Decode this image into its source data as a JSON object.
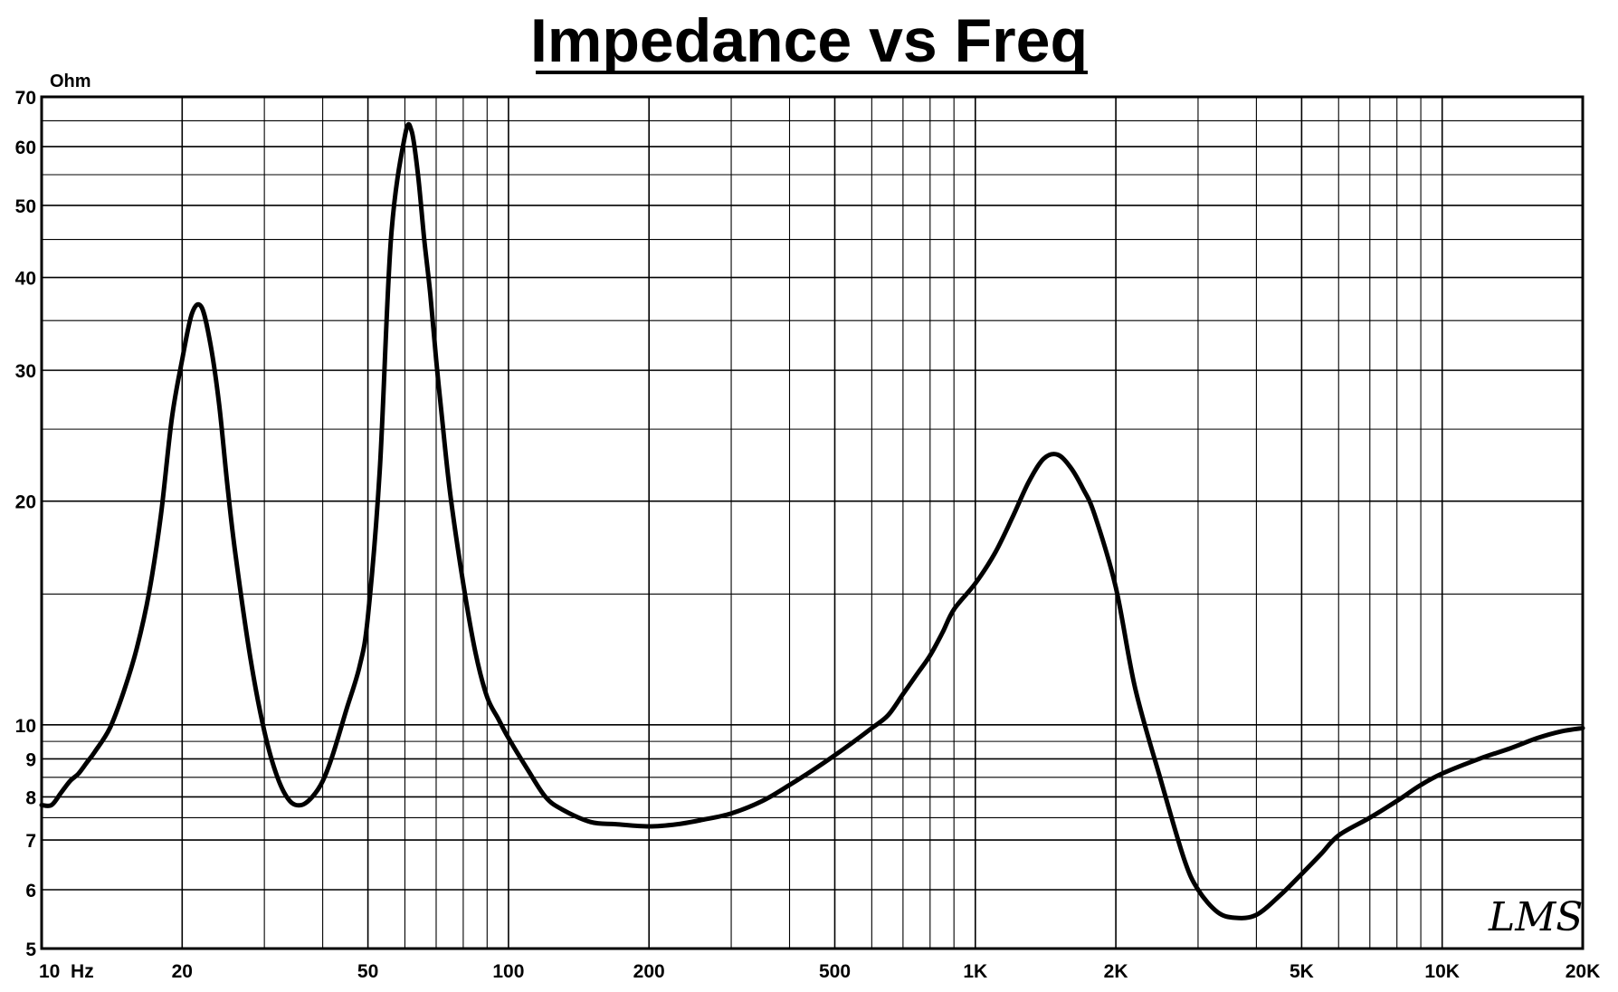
{
  "chart_data": {
    "type": "line",
    "title": "Impedance vs Freq",
    "ylabel": "Ohm",
    "xlabel": "",
    "x_scale": "log",
    "y_scale": "log",
    "xlim": [
      10,
      20000
    ],
    "ylim": [
      5,
      70
    ],
    "grid": true,
    "x_tick_labels": [
      {
        "value": 10,
        "label": "10  Hz"
      },
      {
        "value": 20,
        "label": "20"
      },
      {
        "value": 50,
        "label": "50"
      },
      {
        "value": 100,
        "label": "100"
      },
      {
        "value": 200,
        "label": "200"
      },
      {
        "value": 500,
        "label": "500"
      },
      {
        "value": 1000,
        "label": "1K"
      },
      {
        "value": 2000,
        "label": "2K"
      },
      {
        "value": 5000,
        "label": "5K"
      },
      {
        "value": 10000,
        "label": "10K"
      },
      {
        "value": 20000,
        "label": "20K"
      }
    ],
    "y_tick_labels": [
      {
        "value": 5,
        "label": "5"
      },
      {
        "value": 6,
        "label": "6"
      },
      {
        "value": 7,
        "label": "7"
      },
      {
        "value": 8,
        "label": "8"
      },
      {
        "value": 9,
        "label": "9"
      },
      {
        "value": 10,
        "label": "10"
      },
      {
        "value": 20,
        "label": "20"
      },
      {
        "value": 30,
        "label": "30"
      },
      {
        "value": 40,
        "label": "40"
      },
      {
        "value": 50,
        "label": "50"
      },
      {
        "value": 60,
        "label": "60"
      },
      {
        "value": 70,
        "label": "70"
      }
    ],
    "y_minor_grid": [
      15,
      25,
      35,
      45,
      55,
      65,
      7.5,
      8.5,
      9.5
    ],
    "series": [
      {
        "color": "#000000",
        "x": [
          10,
          10.5,
          11,
          11.5,
          12,
          12.5,
          13,
          14,
          15,
          16,
          17,
          18,
          19,
          20,
          21,
          22,
          23,
          24,
          25,
          26,
          28,
          30,
          32,
          34,
          36,
          38,
          40,
          42,
          45,
          48,
          50,
          53,
          56,
          60,
          62,
          64,
          66,
          68,
          70,
          72,
          75,
          80,
          85,
          90,
          95,
          100,
          110,
          120,
          130,
          150,
          170,
          200,
          230,
          260,
          300,
          350,
          400,
          450,
          500,
          550,
          600,
          650,
          700,
          750,
          800,
          850,
          900,
          1000,
          1100,
          1200,
          1300,
          1400,
          1500,
          1600,
          1700,
          1800,
          2000,
          2200,
          2500,
          2800,
          3000,
          3300,
          3600,
          4000,
          4500,
          5000,
          5500,
          6000,
          7000,
          8000,
          9000,
          10000,
          12000,
          14000,
          16000,
          18000,
          20000
        ],
        "values": [
          7.8,
          7.8,
          8.1,
          8.4,
          8.6,
          8.9,
          9.2,
          9.9,
          11.1,
          12.7,
          15.1,
          19.1,
          25.8,
          31.0,
          35.8,
          36.5,
          32.5,
          27.0,
          21.0,
          17.0,
          12.3,
          9.8,
          8.5,
          7.9,
          7.8,
          8.0,
          8.4,
          9.1,
          10.5,
          12.0,
          14.0,
          22.0,
          45.0,
          62.0,
          63.0,
          55.0,
          45.0,
          38.0,
          31.0,
          26.0,
          20.5,
          15.5,
          12.5,
          10.9,
          10.2,
          9.6,
          8.7,
          8.0,
          7.7,
          7.4,
          7.35,
          7.3,
          7.35,
          7.45,
          7.6,
          7.9,
          8.3,
          8.7,
          9.1,
          9.5,
          9.9,
          10.3,
          11.0,
          11.7,
          12.4,
          13.3,
          14.3,
          15.5,
          17.0,
          19.0,
          21.2,
          22.8,
          23.1,
          22.2,
          20.8,
          19.2,
          15.3,
          11.2,
          8.4,
          6.6,
          6.0,
          5.6,
          5.5,
          5.55,
          5.9,
          6.3,
          6.7,
          7.1,
          7.5,
          7.9,
          8.3,
          8.6,
          9.0,
          9.3,
          9.6,
          9.8,
          9.9
        ]
      }
    ]
  },
  "watermark": "LMS"
}
